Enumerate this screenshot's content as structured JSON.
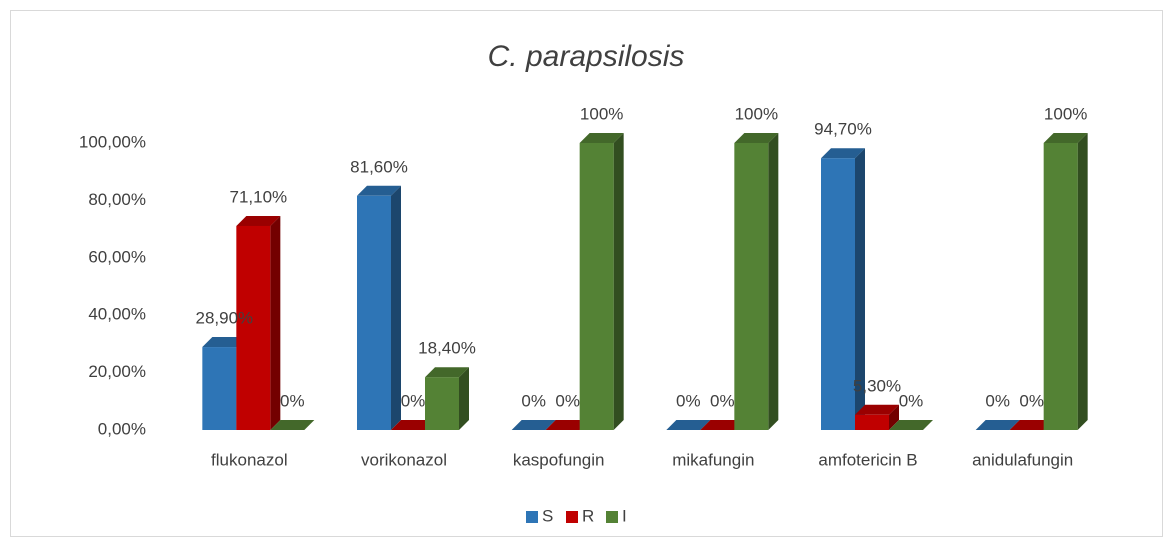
{
  "chart_data": {
    "type": "bar3d",
    "title": "C. parapsilosis",
    "categories": [
      "flukonazol",
      "vorikonazol",
      "kaspofungin",
      "mikafungin",
      "amfotericin B",
      "anidulafungin"
    ],
    "series": [
      {
        "name": "S",
        "color": "#2e75b6",
        "values": [
          28.9,
          81.6,
          0,
          0,
          94.7,
          0
        ],
        "value_labels": [
          "28,90%",
          "81,60%",
          "0%",
          "0%",
          "94,70%",
          "0%"
        ]
      },
      {
        "name": "R",
        "color": "#c00000",
        "values": [
          71.1,
          0,
          0,
          0,
          5.3,
          0
        ],
        "value_labels": [
          "71,10%",
          "0%",
          "0%",
          "0%",
          "5,30%",
          "0%"
        ]
      },
      {
        "name": "I",
        "color": "#548235",
        "values": [
          0,
          18.4,
          100,
          100,
          0,
          100
        ],
        "value_labels": [
          "0%",
          "18,40%",
          "100%",
          "100%",
          "0%",
          "100%"
        ]
      }
    ],
    "ylim": [
      0,
      100
    ],
    "yticks": [
      {
        "value": 0,
        "label": "0,00%"
      },
      {
        "value": 20,
        "label": "20,00%"
      },
      {
        "value": 40,
        "label": "40,00%"
      },
      {
        "value": 60,
        "label": "60,00%"
      },
      {
        "value": 80,
        "label": "80,00%"
      },
      {
        "value": 100,
        "label": "100,00%"
      }
    ],
    "grid": false,
    "legend": "bottom"
  }
}
